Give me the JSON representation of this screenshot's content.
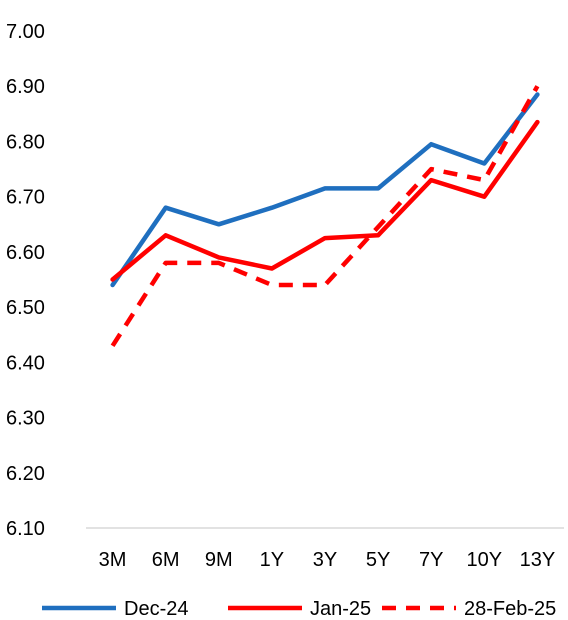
{
  "chart_data": {
    "type": "line",
    "title": "",
    "xlabel": "",
    "ylabel": "",
    "categories": [
      "3M",
      "6M",
      "9M",
      "1Y",
      "3Y",
      "5Y",
      "7Y",
      "10Y",
      "13Y"
    ],
    "ylim": [
      6.1,
      7.0
    ],
    "yticks": [
      "6.10",
      "6.20",
      "6.30",
      "6.40",
      "6.50",
      "6.60",
      "6.70",
      "6.80",
      "6.90",
      "7.00"
    ],
    "grid": false,
    "legend_position": "bottom",
    "series": [
      {
        "name": "Dec-24",
        "color": "#1f6fbf",
        "dash": "solid",
        "values": [
          6.54,
          6.68,
          6.65,
          6.68,
          6.715,
          6.715,
          6.795,
          6.76,
          6.885
        ]
      },
      {
        "name": "Jan-25",
        "color": "#ff0000",
        "dash": "solid",
        "values": [
          6.55,
          6.63,
          6.59,
          6.57,
          6.625,
          6.63,
          6.73,
          6.7,
          6.835
        ]
      },
      {
        "name": "28-Feb-25",
        "color": "#ff0000",
        "dash": "dashed",
        "values": [
          6.43,
          6.58,
          6.58,
          6.54,
          6.54,
          6.645,
          6.75,
          6.73,
          6.9
        ]
      }
    ]
  }
}
